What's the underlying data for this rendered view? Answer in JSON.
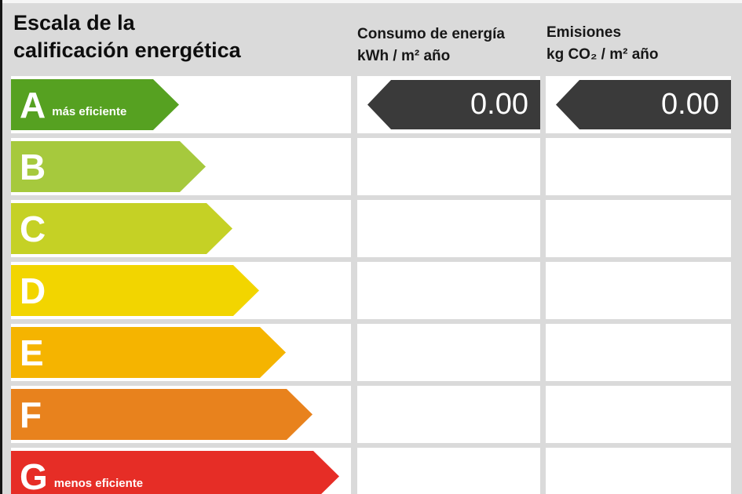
{
  "page": {
    "title_line1": "Escala de la",
    "title_line2": "calificación energética"
  },
  "headers": {
    "consumption_line1": "Consumo de energía",
    "consumption_line2": "kWh / m² año",
    "emissions_line1": "Emisiones",
    "emissions_line2": "kg CO₂ / m² año"
  },
  "scale": {
    "rows": [
      {
        "letter": "A",
        "note": "más eficiente",
        "color": "#56a121"
      },
      {
        "letter": "B",
        "note": "",
        "color": "#a6c93d"
      },
      {
        "letter": "C",
        "note": "",
        "color": "#c5d125"
      },
      {
        "letter": "D",
        "note": "",
        "color": "#f2d500"
      },
      {
        "letter": "E",
        "note": "",
        "color": "#f5b400"
      },
      {
        "letter": "F",
        "note": "",
        "color": "#e8821d"
      },
      {
        "letter": "G",
        "note": "menos eficiente",
        "color": "#e62d26"
      }
    ]
  },
  "values": {
    "arrow_color": "#3a3a3a",
    "indicated_rating": "A",
    "consumption": "0.00",
    "emissions": "0.00"
  },
  "chart_data": {
    "type": "bar",
    "title": "Escala de la calificación energética",
    "categories": [
      "A",
      "B",
      "C",
      "D",
      "E",
      "F",
      "G"
    ],
    "category_notes": {
      "A": "más eficiente",
      "G": "menos eficiente"
    },
    "indicated_rating": "A",
    "series": [
      {
        "name": "Consumo de energía kWh / m² año",
        "values": [
          0.0,
          null,
          null,
          null,
          null,
          null,
          null
        ]
      },
      {
        "name": "Emisiones kg CO₂ / m² año",
        "values": [
          0.0,
          null,
          null,
          null,
          null,
          null,
          null
        ]
      }
    ],
    "colors": [
      "#56a121",
      "#a6c93d",
      "#c5d125",
      "#f2d500",
      "#f5b400",
      "#e8821d",
      "#e62d26"
    ],
    "legend_position": "top",
    "grid": false
  }
}
